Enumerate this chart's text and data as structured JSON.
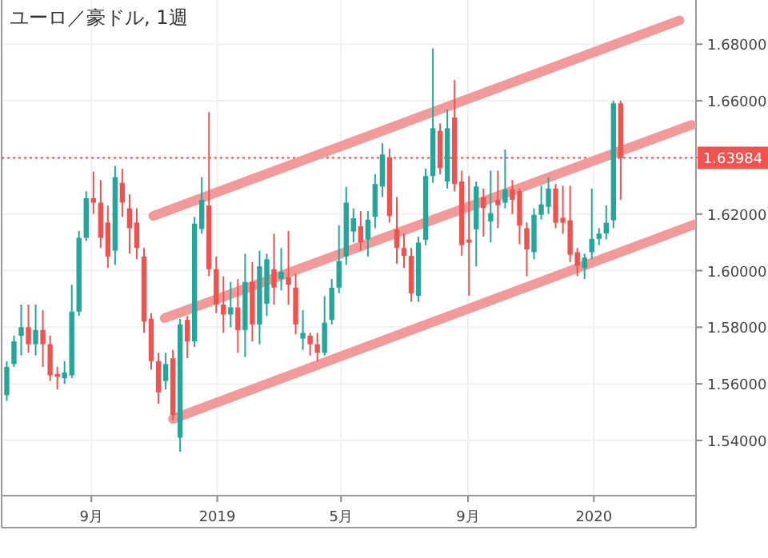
{
  "chart_data": {
    "type": "candlestick",
    "title": "ユーロ／豪ドル, 1週",
    "x": [
      "2018-06-11",
      "2018-06-18",
      "2018-06-25",
      "2018-07-02",
      "2018-07-09",
      "2018-07-16",
      "2018-07-23",
      "2018-07-30",
      "2018-08-06",
      "2018-08-13",
      "2018-08-20",
      "2018-08-27",
      "2018-09-03",
      "2018-09-10",
      "2018-09-17",
      "2018-09-24",
      "2018-10-01",
      "2018-10-08",
      "2018-10-15",
      "2018-10-22",
      "2018-10-29",
      "2018-11-05",
      "2018-11-12",
      "2018-11-19",
      "2018-11-26",
      "2018-12-03",
      "2018-12-10",
      "2018-12-17",
      "2018-12-24",
      "2018-12-31",
      "2019-01-07",
      "2019-01-14",
      "2019-01-21",
      "2019-01-28",
      "2019-02-04",
      "2019-02-11",
      "2019-02-18",
      "2019-02-25",
      "2019-03-04",
      "2019-03-11",
      "2019-03-18",
      "2019-03-25",
      "2019-04-01",
      "2019-04-08",
      "2019-04-15",
      "2019-04-22",
      "2019-04-29",
      "2019-05-06",
      "2019-05-13",
      "2019-05-20",
      "2019-05-27",
      "2019-06-03",
      "2019-06-10",
      "2019-06-17",
      "2019-06-24",
      "2019-07-01",
      "2019-07-08",
      "2019-07-15",
      "2019-07-22",
      "2019-07-29",
      "2019-08-05",
      "2019-08-12",
      "2019-08-19",
      "2019-08-26",
      "2019-09-02",
      "2019-09-09",
      "2019-09-16",
      "2019-09-23",
      "2019-09-30",
      "2019-10-07",
      "2019-10-14",
      "2019-10-21",
      "2019-10-28",
      "2019-11-04",
      "2019-11-11",
      "2019-11-18",
      "2019-11-25",
      "2019-12-02",
      "2019-12-09",
      "2019-12-16",
      "2019-12-23",
      "2019-12-30",
      "2020-01-06",
      "2020-01-13",
      "2020-01-20",
      "2020-01-27"
    ],
    "ohlc": [
      [
        1.556,
        1.568,
        1.554,
        1.566
      ],
      [
        1.567,
        1.577,
        1.566,
        1.575
      ],
      [
        1.577,
        1.588,
        1.57,
        1.58
      ],
      [
        1.58,
        1.588,
        1.571,
        1.574
      ],
      [
        1.574,
        1.588,
        1.57,
        1.579
      ],
      [
        1.579,
        1.586,
        1.566,
        1.574
      ],
      [
        1.574,
        1.577,
        1.561,
        1.563
      ],
      [
        1.5635,
        1.566,
        1.558,
        1.5625
      ],
      [
        1.562,
        1.568,
        1.56,
        1.564
      ],
      [
        1.563,
        1.595,
        1.562,
        1.5855
      ],
      [
        1.5855,
        1.614,
        1.584,
        1.6116
      ],
      [
        1.6116,
        1.628,
        1.6105,
        1.6256
      ],
      [
        1.6256,
        1.635,
        1.62,
        1.624
      ],
      [
        1.624,
        1.632,
        1.608,
        1.6116
      ],
      [
        1.617,
        1.623,
        1.601,
        1.605
      ],
      [
        1.607,
        1.637,
        1.602,
        1.633
      ],
      [
        1.631,
        1.636,
        1.619,
        1.624
      ],
      [
        1.622,
        1.627,
        1.606,
        1.615
      ],
      [
        1.617,
        1.622,
        1.604,
        1.608
      ],
      [
        1.605,
        1.608,
        1.578,
        1.582
      ],
      [
        1.583,
        1.585,
        1.565,
        1.568
      ],
      [
        1.568,
        1.571,
        1.553,
        1.557
      ],
      [
        1.561,
        1.571,
        1.558,
        1.567
      ],
      [
        1.569,
        1.572,
        1.547,
        1.549
      ],
      [
        1.541,
        1.583,
        1.536,
        1.581
      ],
      [
        1.5826,
        1.584,
        1.569,
        1.575
      ],
      [
        1.575,
        1.619,
        1.573,
        1.6166
      ],
      [
        1.6147,
        1.633,
        1.613,
        1.625
      ],
      [
        1.623,
        1.656,
        1.598,
        1.6005
      ],
      [
        1.6005,
        1.605,
        1.585,
        1.588
      ],
      [
        1.588,
        1.598,
        1.578,
        1.5845
      ],
      [
        1.5845,
        1.596,
        1.58,
        1.587
      ],
      [
        1.587,
        1.597,
        1.571,
        1.579
      ],
      [
        1.579,
        1.606,
        1.5695,
        1.596
      ],
      [
        1.596,
        1.603,
        1.575,
        1.581
      ],
      [
        1.581,
        1.607,
        1.574,
        1.6015
      ],
      [
        1.5883,
        1.606,
        1.584,
        1.604
      ],
      [
        1.6005,
        1.613,
        1.588,
        1.594
      ],
      [
        1.597,
        1.608,
        1.593,
        1.5995
      ],
      [
        1.5977,
        1.614,
        1.588,
        1.595
      ],
      [
        1.594,
        1.599,
        1.5775,
        1.581
      ],
      [
        1.576,
        1.586,
        1.572,
        1.578
      ],
      [
        1.577,
        1.578,
        1.57,
        1.574
      ],
      [
        1.574,
        1.578,
        1.568,
        1.571
      ],
      [
        1.571,
        1.591,
        1.57,
        1.5816
      ],
      [
        1.5826,
        1.597,
        1.581,
        1.5939
      ],
      [
        1.594,
        1.616,
        1.592,
        1.6034
      ],
      [
        1.605,
        1.6296,
        1.602,
        1.624
      ],
      [
        1.6138,
        1.622,
        1.61,
        1.6185
      ],
      [
        1.6157,
        1.621,
        1.607,
        1.61
      ],
      [
        1.611,
        1.621,
        1.605,
        1.618
      ],
      [
        1.619,
        1.634,
        1.615,
        1.6306
      ],
      [
        1.6297,
        1.645,
        1.626,
        1.641
      ],
      [
        1.64,
        1.643,
        1.617,
        1.6193
      ],
      [
        1.6146,
        1.626,
        1.6024,
        1.608
      ],
      [
        1.608,
        1.613,
        1.601,
        1.6052
      ],
      [
        1.6052,
        1.608,
        1.589,
        1.592
      ],
      [
        1.5911,
        1.612,
        1.589,
        1.6099
      ],
      [
        1.6109,
        1.636,
        1.609,
        1.6334
      ],
      [
        1.6334,
        1.6785,
        1.631,
        1.6503
      ],
      [
        1.6494,
        1.652,
        1.634,
        1.6362
      ],
      [
        1.6315,
        1.6569,
        1.629,
        1.6503
      ],
      [
        1.6541,
        1.6673,
        1.628,
        1.6306
      ],
      [
        1.6315,
        1.6353,
        1.6052,
        1.609
      ],
      [
        1.611,
        1.6334,
        1.5911,
        1.6099
      ],
      [
        1.6146,
        1.6315,
        1.6015,
        1.6297
      ],
      [
        1.6259,
        1.629,
        1.612,
        1.6221
      ],
      [
        1.6174,
        1.6353,
        1.61,
        1.6203
      ],
      [
        1.625,
        1.6353,
        1.615,
        1.6231
      ],
      [
        1.624,
        1.6428,
        1.622,
        1.6287
      ],
      [
        1.6287,
        1.632,
        1.62,
        1.625
      ],
      [
        1.6281,
        1.629,
        1.6093,
        1.6159
      ],
      [
        1.615,
        1.617,
        1.598,
        1.6075
      ],
      [
        1.6065,
        1.622,
        1.604,
        1.6197
      ],
      [
        1.6197,
        1.63,
        1.618,
        1.6234
      ],
      [
        1.6225,
        1.633,
        1.62,
        1.629
      ],
      [
        1.629,
        1.6306,
        1.615,
        1.6169
      ],
      [
        1.6187,
        1.63,
        1.613,
        1.6169
      ],
      [
        1.6178,
        1.63,
        1.603,
        1.6056
      ],
      [
        1.6065,
        1.608,
        1.598,
        1.6018
      ],
      [
        1.6009,
        1.606,
        1.597,
        1.6046
      ],
      [
        1.6065,
        1.629,
        1.604,
        1.6112
      ],
      [
        1.6112,
        1.615,
        1.609,
        1.6131
      ],
      [
        1.6131,
        1.623,
        1.611,
        1.6169
      ],
      [
        1.6178,
        1.66,
        1.615,
        1.6591
      ],
      [
        1.6591,
        1.66,
        1.625,
        1.63984
      ]
    ],
    "colors": [
      "#26a69a",
      "#26a69a",
      "#26a69a",
      "#ef5350",
      "#26a69a",
      "#ef5350",
      "#ef5350",
      "#ef5350",
      "#26a69a",
      "#26a69a",
      "#26a69a",
      "#26a69a",
      "#ef5350",
      "#ef5350",
      "#ef5350",
      "#26a69a",
      "#ef5350",
      "#ef5350",
      "#ef5350",
      "#ef5350",
      "#ef5350",
      "#ef5350",
      "#26a69a",
      "#ef5350",
      "#26a69a",
      "#ef5350",
      "#26a69a",
      "#26a69a",
      "#ef5350",
      "#ef5350",
      "#ef5350",
      "#26a69a",
      "#ef5350",
      "#26a69a",
      "#ef5350",
      "#26a69a",
      "#26a69a",
      "#ef5350",
      "#26a69a",
      "#ef5350",
      "#ef5350",
      "#26a69a",
      "#ef5350",
      "#ef5350",
      "#26a69a",
      "#26a69a",
      "#26a69a",
      "#26a69a",
      "#26a69a",
      "#ef5350",
      "#26a69a",
      "#26a69a",
      "#26a69a",
      "#ef5350",
      "#ef5350",
      "#ef5350",
      "#ef5350",
      "#26a69a",
      "#26a69a",
      "#26a69a",
      "#ef5350",
      "#26a69a",
      "#ef5350",
      "#ef5350",
      "#ef5350",
      "#26a69a",
      "#ef5350",
      "#26a69a",
      "#ef5350",
      "#26a69a",
      "#ef5350",
      "#ef5350",
      "#ef5350",
      "#26a69a",
      "#26a69a",
      "#26a69a",
      "#ef5350",
      "#ef5350",
      "#ef5350",
      "#ef5350",
      "#26a69a",
      "#26a69a",
      "#26a69a",
      "#26a69a",
      "#26a69a",
      "#ef5350"
    ],
    "series": [
      {
        "type": "line",
        "x": [
          "2018-10-31",
          "2020-03-24"
        ],
        "values": [
          1.6193,
          1.6884
        ],
        "color": "#f29a9a"
      },
      {
        "type": "line",
        "x": [
          "2018-11-11",
          "2020-04-05"
        ],
        "values": [
          1.5832,
          1.6515
        ],
        "color": "#f29a9a"
      },
      {
        "type": "line",
        "x": [
          "2018-11-19",
          "2020-04-09"
        ],
        "values": [
          1.5476,
          1.6165
        ],
        "color": "#f29a9a"
      }
    ],
    "ref_lines": [
      {
        "axis": "y",
        "value": 1.63984,
        "label": "1.63984",
        "color": "#ef5350",
        "line_style": "dotted"
      }
    ],
    "xlim": [
      "2018-06-06",
      "2020-04-09"
    ],
    "ylim": [
      1.5205,
      1.6956
    ],
    "xticks": [
      {
        "value": "2018-09-01",
        "label": "9月"
      },
      {
        "value": "2019-01-01",
        "label": "2019"
      },
      {
        "value": "2019-05-01",
        "label": "5月"
      },
      {
        "value": "2019-09-01",
        "label": "9月"
      },
      {
        "value": "2020-01-01",
        "label": "2020"
      }
    ],
    "yticks": [
      {
        "value": 1.54,
        "label": "1.54000"
      },
      {
        "value": 1.56,
        "label": "1.56000"
      },
      {
        "value": 1.58,
        "label": "1.58000"
      },
      {
        "value": 1.6,
        "label": "1.60000"
      },
      {
        "value": 1.62,
        "label": "1.62000"
      },
      {
        "value": 1.64,
        "label": null
      },
      {
        "value": 1.66,
        "label": "1.66000"
      },
      {
        "value": 1.68,
        "label": "1.68000"
      }
    ],
    "grid": true
  }
}
